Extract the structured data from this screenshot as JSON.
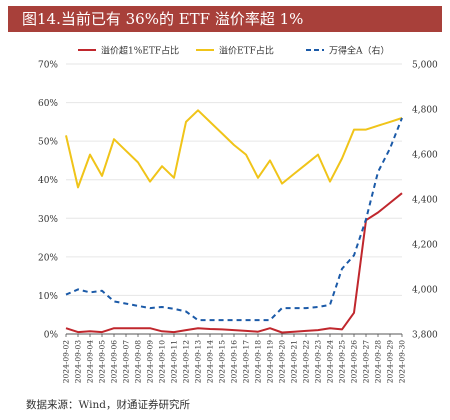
{
  "title": "图14.当前已有 36%的 ETF 溢价率超 1%",
  "source": "数据来源：Wind，财通证券研究所",
  "chart_data": {
    "type": "line",
    "x": [
      "2024-09-02",
      "2024-09-03",
      "2024-09-04",
      "2024-09-05",
      "2024-09-06",
      "2024-09-07",
      "2024-09-08",
      "2024-09-09",
      "2024-09-10",
      "2024-09-11",
      "2024-09-12",
      "2024-09-13",
      "2024-09-14",
      "2024-09-15",
      "2024-09-16",
      "2024-09-17",
      "2024-09-18",
      "2024-09-19",
      "2024-09-20",
      "2024-09-21",
      "2024-09-22",
      "2024-09-23",
      "2024-09-24",
      "2024-09-25",
      "2024-09-26",
      "2024-09-27",
      "2024-09-28",
      "2024-09-29",
      "2024-09-30"
    ],
    "ylim_left": [
      0,
      70
    ],
    "yticks_left": [
      "0%",
      "10%",
      "20%",
      "30%",
      "40%",
      "50%",
      "60%",
      "70%"
    ],
    "ylim_right": [
      3800,
      5000
    ],
    "yticks_right": [
      "3,800",
      "4,000",
      "4,200",
      "4,400",
      "4,600",
      "4,800",
      "5,000"
    ],
    "legend_position": "top",
    "series": [
      {
        "name": "溢价超1%ETF占比",
        "axis": "left",
        "color": "#c0272d",
        "dash": "solid",
        "values": [
          1.5,
          0.5,
          0.7,
          0.5,
          1.5,
          1.5,
          1.5,
          1.5,
          0.7,
          0.5,
          1.0,
          1.5,
          1.3,
          1.2,
          1.0,
          0.8,
          0.6,
          1.5,
          0.4,
          0.6,
          0.8,
          1.0,
          1.5,
          1.2,
          5.5,
          29.5,
          31.5,
          34.0,
          36.5
        ]
      },
      {
        "name": "溢价ETF占比",
        "axis": "left",
        "color": "#f0c419",
        "dash": "solid",
        "values": [
          51.5,
          38.0,
          46.5,
          41.0,
          50.5,
          47.5,
          44.5,
          39.5,
          43.5,
          40.5,
          55.0,
          58.0,
          55.0,
          52.0,
          49.0,
          46.5,
          40.5,
          45.0,
          39.0,
          41.5,
          44.0,
          46.5,
          39.5,
          45.5,
          53.0,
          53.0,
          54.0,
          55.0,
          56.0
        ]
      },
      {
        "name": "万得全A（右）",
        "axis": "right",
        "color": "#1b5aa8",
        "dash": "dashed",
        "values": [
          3975,
          3998,
          3985,
          3992,
          3945,
          3935,
          3925,
          3915,
          3920,
          3912,
          3900,
          3862,
          3862,
          3862,
          3862,
          3862,
          3862,
          3862,
          3915,
          3915,
          3915,
          3920,
          3930,
          4090,
          4150,
          4310,
          4520,
          4625,
          4760
        ]
      }
    ]
  }
}
